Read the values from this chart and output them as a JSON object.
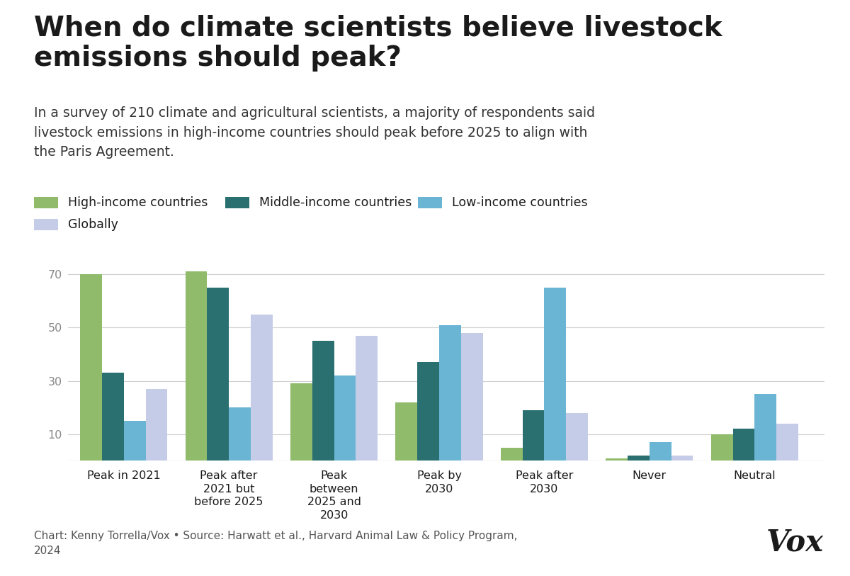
{
  "title": "When do climate scientists believe livestock\nemissions should peak?",
  "subtitle": "In a survey of 210 climate and agricultural scientists, a majority of respondents said\nlivestock emissions in high-income countries should peak before 2025 to align with\nthe Paris Agreement.",
  "categories": [
    "Peak in 2021",
    "Peak after\n2021 but\nbefore 2025",
    "Peak\nbetween\n2025 and\n2030",
    "Peak by\n2030",
    "Peak after\n2030",
    "Never",
    "Neutral"
  ],
  "series": {
    "High-income countries": [
      70,
      71,
      29,
      22,
      5,
      1,
      10
    ],
    "Middle-income countries": [
      33,
      65,
      45,
      37,
      19,
      2,
      12
    ],
    "Low-income countries": [
      15,
      20,
      32,
      51,
      65,
      7,
      25
    ],
    "Globally": [
      27,
      55,
      47,
      48,
      18,
      2,
      14
    ]
  },
  "colors": {
    "High-income countries": "#8fbb6b",
    "Middle-income countries": "#2a7070",
    "Low-income countries": "#6ab4d4",
    "Globally": "#c5cce8"
  },
  "legend_labels": [
    "High-income countries",
    "Middle-income countries",
    "Low-income countries",
    "Globally"
  ],
  "yticks": [
    10,
    30,
    50,
    70
  ],
  "ylim": [
    0,
    80
  ],
  "footer": "Chart: Kenny Torrella/Vox • Source: Harwatt et al., Harvard Animal Law & Policy Program,\n2024",
  "bg_color": "#ffffff",
  "title_color": "#1a1a1a",
  "subtitle_color": "#333333",
  "footer_color": "#555555",
  "grid_color": "#d0d0d0",
  "tick_color": "#888888"
}
